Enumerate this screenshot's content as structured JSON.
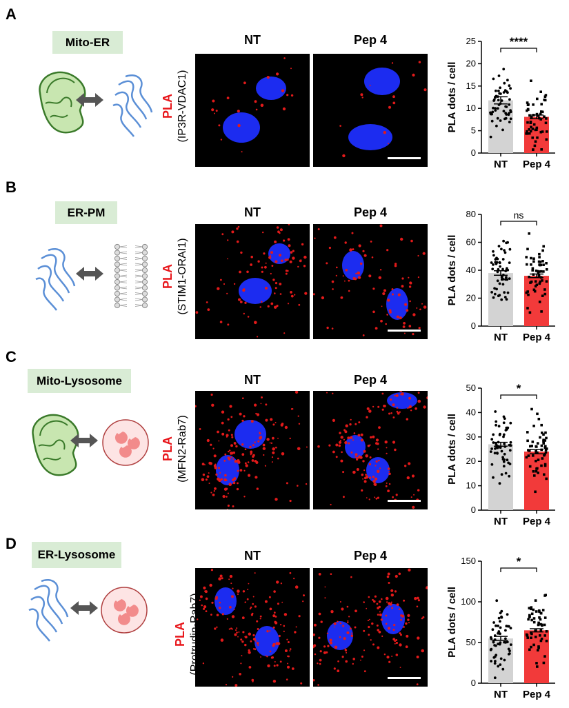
{
  "panels": [
    {
      "letter": "A",
      "tag": "Mito-ER",
      "pla_label": "PLA",
      "pair_label": "(IP3R-VDAC1)",
      "col_titles": [
        "NT",
        "Pep 4"
      ],
      "illustration": [
        "mitochondrion-icon",
        "double-arrow-icon",
        "er-icon"
      ],
      "chart": {
        "ylabel": "PLA dots / cell",
        "categories": [
          "NT",
          "Pep 4"
        ],
        "means": [
          11.8,
          8.1
        ],
        "sem": [
          0.8,
          0.4
        ],
        "ylim": [
          0,
          25
        ],
        "yticks": [
          0,
          5,
          10,
          15,
          20,
          25
        ],
        "sig": "****"
      }
    },
    {
      "letter": "B",
      "tag": "ER-PM",
      "pla_label": "PLA",
      "pair_label": "(STIM1-ORAI1)",
      "col_titles": [
        "NT",
        "Pep 4"
      ],
      "illustration": [
        "er-icon",
        "double-arrow-icon",
        "plasma-membrane-icon"
      ],
      "chart": {
        "ylabel": "PLA dots / cell",
        "categories": [
          "NT",
          "Pep 4"
        ],
        "means": [
          38,
          36
        ],
        "sem": [
          1.6,
          1.3
        ],
        "ylim": [
          0,
          80
        ],
        "yticks": [
          0,
          20,
          40,
          60,
          80
        ],
        "sig": "ns"
      }
    },
    {
      "letter": "C",
      "tag": "Mito-Lysosome",
      "pla_label": "PLA",
      "pair_label": "(MFN2-Rab7)",
      "col_titles": [
        "NT",
        "Pep 4"
      ],
      "illustration": [
        "mitochondrion-icon",
        "double-arrow-icon",
        "lysosome-icon"
      ],
      "chart": {
        "ylabel": "PLA dots / cell",
        "categories": [
          "NT",
          "Pep 4"
        ],
        "means": [
          27,
          24
        ],
        "sem": [
          0.8,
          0.9
        ],
        "ylim": [
          0,
          50
        ],
        "yticks": [
          0,
          10,
          20,
          30,
          40,
          50
        ],
        "sig": "*"
      }
    },
    {
      "letter": "D",
      "tag": "ER-Lysosome",
      "pla_label": "PLA",
      "pair_label": "(Protrudin-Rab7)",
      "col_titles": [
        "NT",
        "Pep 4"
      ],
      "illustration": [
        "er-icon",
        "double-arrow-icon",
        "lysosome-icon"
      ],
      "chart": {
        "ylabel": "PLA dots / cell",
        "categories": [
          "NT",
          "Pep 4"
        ],
        "means": [
          55,
          65
        ],
        "sem": [
          2.5,
          2.0
        ],
        "ylim": [
          0,
          150
        ],
        "yticks": [
          0,
          50,
          100,
          150
        ],
        "sig": "*"
      }
    }
  ],
  "chart_data": [
    {
      "type": "bar",
      "title": "",
      "ylabel": "PLA dots / cell",
      "categories": [
        "NT",
        "Pep 4"
      ],
      "values": [
        11.8,
        8.1
      ],
      "ylim": [
        0,
        25
      ],
      "annotation": "****"
    },
    {
      "type": "bar",
      "title": "",
      "ylabel": "PLA dots / cell",
      "categories": [
        "NT",
        "Pep 4"
      ],
      "values": [
        38,
        36
      ],
      "ylim": [
        0,
        80
      ],
      "annotation": "ns"
    },
    {
      "type": "bar",
      "title": "",
      "ylabel": "PLA dots / cell",
      "categories": [
        "NT",
        "Pep 4"
      ],
      "values": [
        27,
        24
      ],
      "ylim": [
        0,
        50
      ],
      "annotation": "*"
    },
    {
      "type": "bar",
      "title": "",
      "ylabel": "PLA dots / cell",
      "categories": [
        "NT",
        "Pep 4"
      ],
      "values": [
        55,
        65
      ],
      "ylim": [
        0,
        150
      ],
      "annotation": "*"
    }
  ],
  "colors": {
    "nt_bar": "#d3d3d3",
    "pep4_bar": "#f23a3a",
    "pla_red": "#e8161b",
    "nucleus": "#1c2cf0",
    "tag_bg": "#d9ecd5",
    "mito": "#8bc34a",
    "er": "#5b8fd6"
  }
}
